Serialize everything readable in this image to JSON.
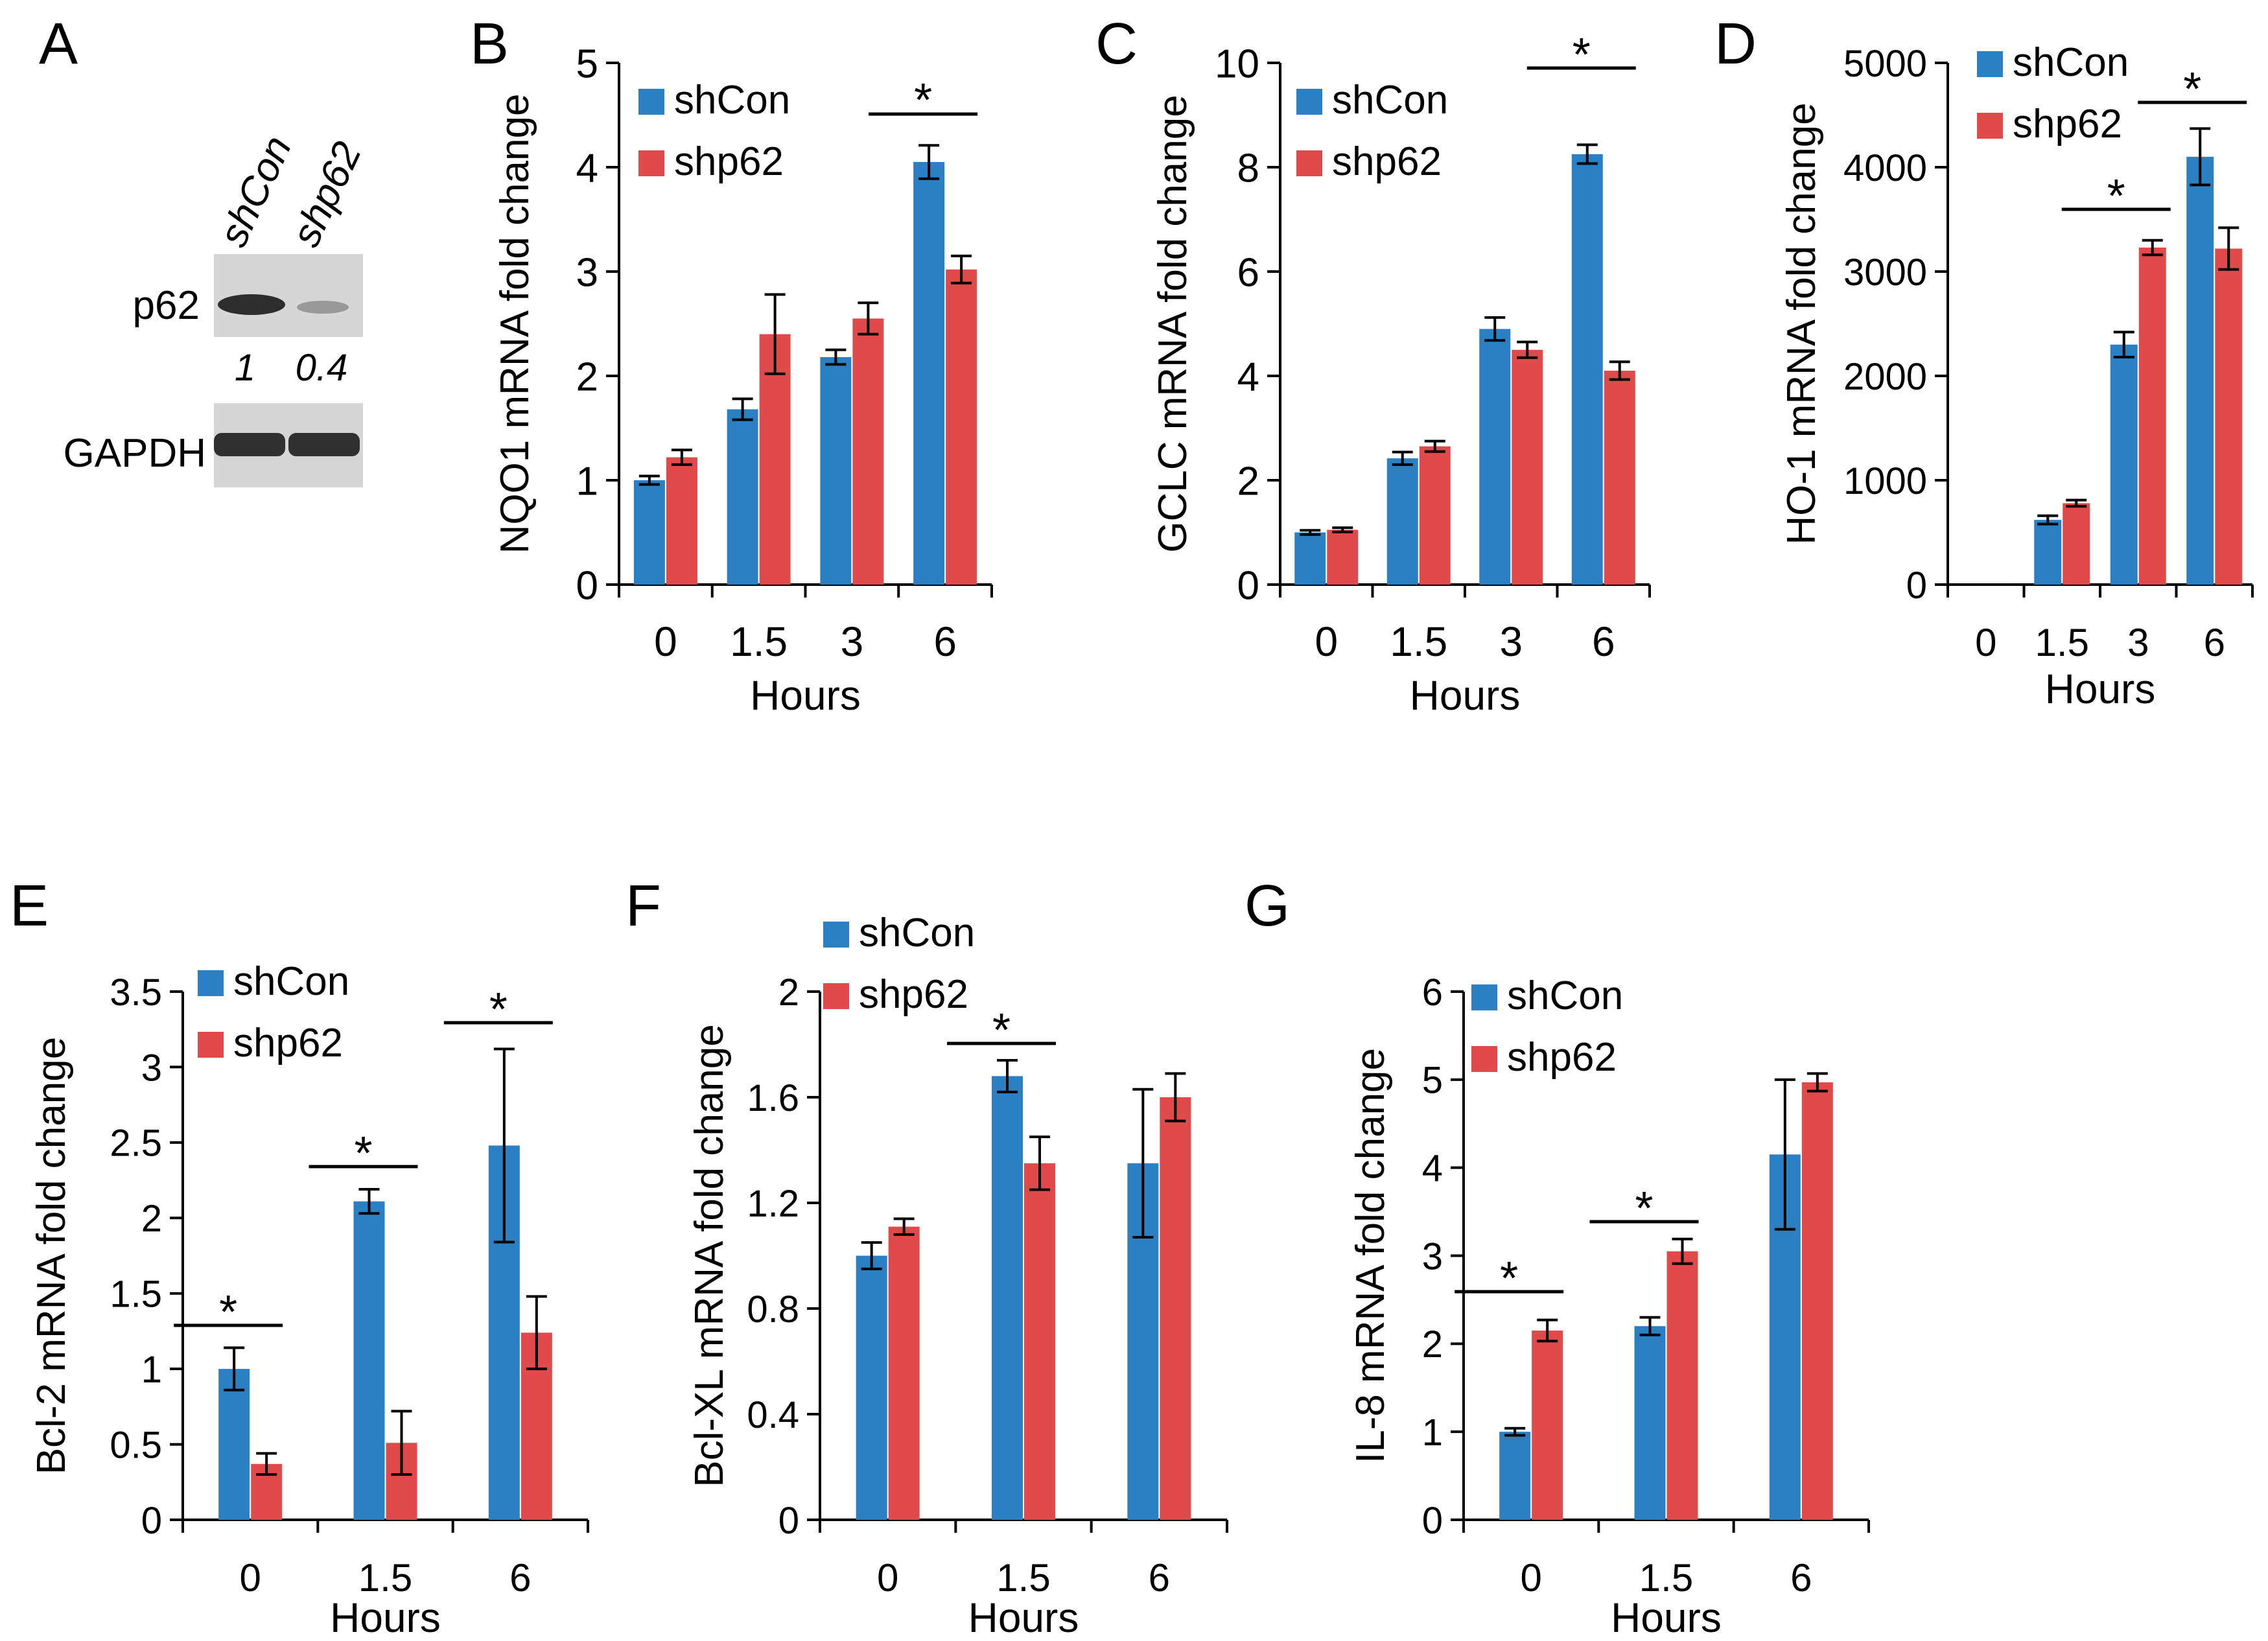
{
  "colors": {
    "shCon": "#2a80c2",
    "shp62": "#e04a4a",
    "axis": "#000000",
    "blot_bg": "#d6d6d6",
    "band": "#1e1e1e"
  },
  "panel_a": {
    "letter": "A",
    "lanes": [
      "shCon",
      "shp62"
    ],
    "row_labels": [
      "p62",
      "GAPDH"
    ],
    "quantities": [
      "1",
      "0.4"
    ]
  },
  "chart_data": [
    {
      "id": "B",
      "letter": "B",
      "type": "bar",
      "ylabel": "NQO1 mRNA fold change",
      "xlabel": "Hours",
      "categories": [
        "0",
        "1.5",
        "3",
        "6"
      ],
      "ylim": [
        0,
        5
      ],
      "yticks": [
        "0",
        "1",
        "2",
        "3",
        "4",
        "5"
      ],
      "series": [
        {
          "name": "shCon",
          "values": [
            1.0,
            1.68,
            2.18,
            4.05
          ],
          "errors": [
            0.04,
            0.1,
            0.07,
            0.16
          ]
        },
        {
          "name": "shp62",
          "values": [
            1.22,
            2.4,
            2.55,
            3.02
          ],
          "errors": [
            0.07,
            0.38,
            0.15,
            0.13
          ]
        }
      ],
      "significance": [
        {
          "category_index": 3,
          "label": "*"
        }
      ]
    },
    {
      "id": "C",
      "letter": "C",
      "type": "bar",
      "ylabel": "GCLC mRNA fold change",
      "xlabel": "Hours",
      "categories": [
        "0",
        "1.5",
        "3",
        "6"
      ],
      "ylim": [
        0,
        10
      ],
      "yticks": [
        "0",
        "2",
        "4",
        "6",
        "8",
        "10"
      ],
      "series": [
        {
          "name": "shCon",
          "values": [
            1.0,
            2.42,
            4.9,
            8.25
          ],
          "errors": [
            0.04,
            0.12,
            0.22,
            0.18
          ]
        },
        {
          "name": "shp62",
          "values": [
            1.05,
            2.65,
            4.5,
            4.1
          ],
          "errors": [
            0.04,
            0.1,
            0.15,
            0.17
          ]
        }
      ],
      "significance": [
        {
          "category_index": 3,
          "label": "*"
        }
      ]
    },
    {
      "id": "D",
      "letter": "D",
      "type": "bar",
      "ylabel": "HO-1 mRNA fold change",
      "xlabel": "Hours",
      "categories": [
        "0",
        "1.5",
        "3",
        "6"
      ],
      "ylim": [
        0,
        5000
      ],
      "yticks": [
        "0",
        "1000",
        "2000",
        "3000",
        "4000",
        "5000"
      ],
      "series": [
        {
          "name": "shCon",
          "values": [
            1,
            620,
            2300,
            4100
          ],
          "errors": [
            0,
            40,
            120,
            270
          ]
        },
        {
          "name": "shp62",
          "values": [
            1,
            780,
            3230,
            3220
          ],
          "errors": [
            0,
            30,
            70,
            200
          ]
        }
      ],
      "significance": [
        {
          "category_index": 2,
          "label": "*"
        },
        {
          "category_index": 3,
          "label": "*"
        }
      ]
    },
    {
      "id": "E",
      "letter": "E",
      "type": "bar",
      "ylabel": "Bcl-2 mRNA fold change",
      "xlabel": "Hours",
      "categories": [
        "0",
        "1.5",
        "6"
      ],
      "ylim": [
        0,
        3.5
      ],
      "yticks": [
        "0",
        "0.5",
        "1",
        "1.5",
        "2",
        "2.5",
        "3",
        "3.5"
      ],
      "series": [
        {
          "name": "shCon",
          "values": [
            1.0,
            2.11,
            2.48
          ],
          "errors": [
            0.14,
            0.08,
            0.64
          ]
        },
        {
          "name": "shp62",
          "values": [
            0.37,
            0.51,
            1.24
          ],
          "errors": [
            0.07,
            0.21,
            0.24
          ]
        }
      ],
      "significance": [
        {
          "category_index": 0,
          "label": "*"
        },
        {
          "category_index": 1,
          "label": "*"
        },
        {
          "category_index": 2,
          "label": "*"
        }
      ]
    },
    {
      "id": "F",
      "letter": "F",
      "type": "bar",
      "ylabel": "Bcl-XL mRNA fold change",
      "xlabel": "Hours",
      "categories": [
        "0",
        "1.5",
        "6"
      ],
      "ylim": [
        0,
        2
      ],
      "yticks": [
        "0",
        "0.4",
        "0.8",
        "1.2",
        "1.6",
        "2"
      ],
      "series": [
        {
          "name": "shCon",
          "values": [
            1.0,
            1.68,
            1.35
          ],
          "errors": [
            0.05,
            0.06,
            0.28
          ]
        },
        {
          "name": "shp62",
          "values": [
            1.11,
            1.35,
            1.6
          ],
          "errors": [
            0.03,
            0.1,
            0.09
          ]
        }
      ],
      "significance": [
        {
          "category_index": 1,
          "label": "*"
        }
      ]
    },
    {
      "id": "G",
      "letter": "G",
      "type": "bar",
      "ylabel": "IL-8 mRNA fold change",
      "xlabel": "Hours",
      "categories": [
        "0",
        "1.5",
        "6"
      ],
      "ylim": [
        0,
        6
      ],
      "yticks": [
        "0",
        "1",
        "2",
        "3",
        "4",
        "5",
        "6"
      ],
      "series": [
        {
          "name": "shCon",
          "values": [
            1.0,
            2.2,
            4.15
          ],
          "errors": [
            0.04,
            0.1,
            0.85
          ]
        },
        {
          "name": "shp62",
          "values": [
            2.15,
            3.05,
            4.97
          ],
          "errors": [
            0.12,
            0.14,
            0.1
          ]
        }
      ],
      "significance": [
        {
          "category_index": 0,
          "label": "*"
        },
        {
          "category_index": 1,
          "label": "*"
        }
      ]
    }
  ]
}
